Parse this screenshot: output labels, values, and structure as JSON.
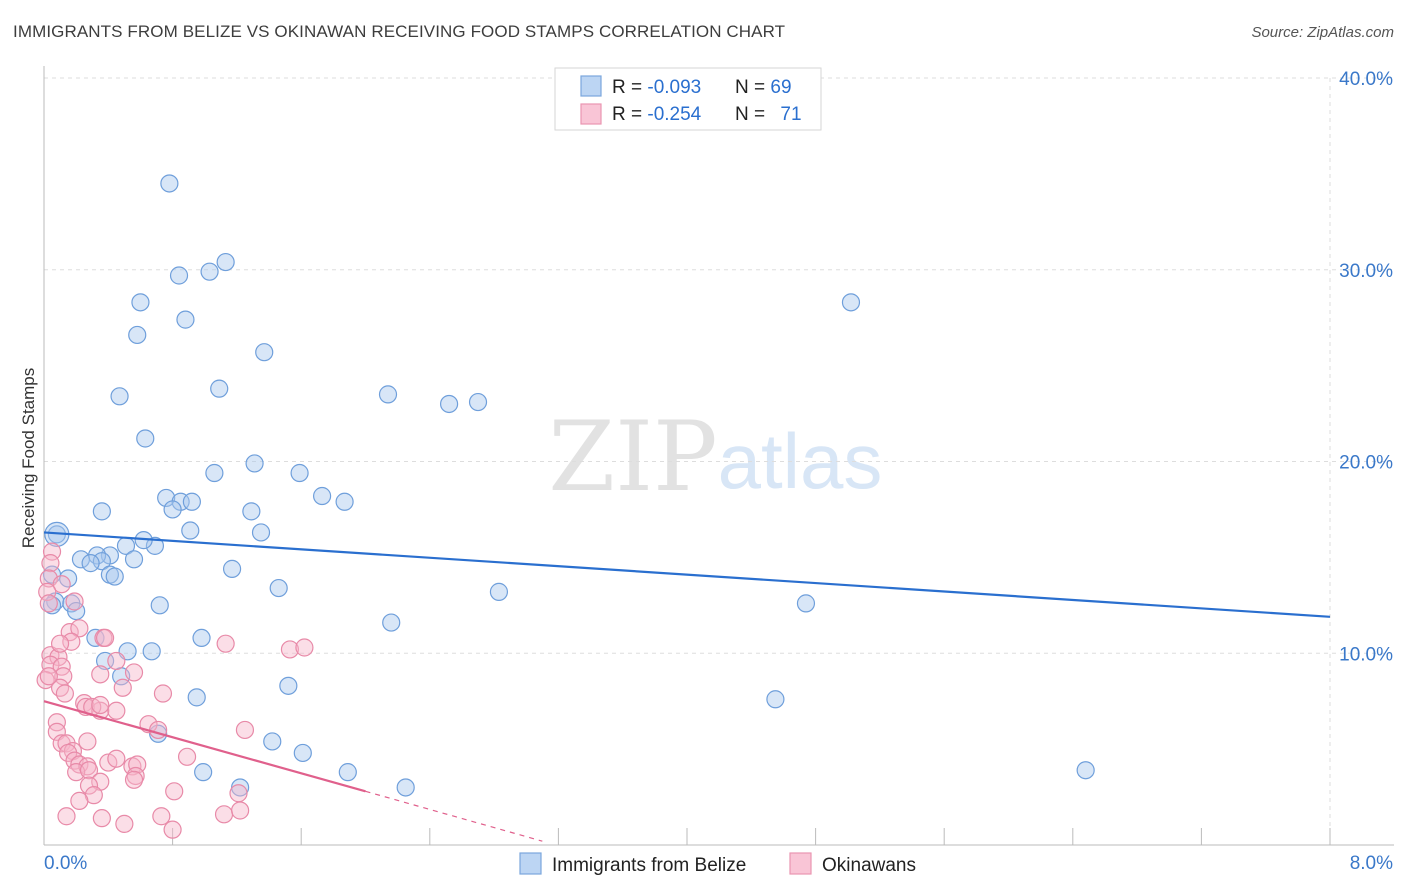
{
  "title": "IMMIGRANTS FROM BELIZE VS OKINAWAN RECEIVING FOOD STAMPS CORRELATION CHART",
  "source": "Source: ZipAtlas.com",
  "watermark": {
    "zip": "ZIP",
    "atlas": "atlas"
  },
  "legend": {
    "rows": [
      {
        "r_label": "R = ",
        "r_value": "-0.093",
        "n_label": "N = ",
        "n_value": "69"
      },
      {
        "r_label": "R = ",
        "r_value": "-0.254",
        "n_label": "N = ",
        "n_value": "71"
      }
    ]
  },
  "chart_data": {
    "type": "scatter",
    "title": "IMMIGRANTS FROM BELIZE VS OKINAWAN RECEIVING FOOD STAMPS CORRELATION CHART",
    "xlabel": "",
    "ylabel": "Receiving Food Stamps",
    "xlim": [
      0,
      8
    ],
    "ylim": [
      0,
      40
    ],
    "x_tick_labels": [
      "0.0%",
      "8.0%"
    ],
    "y_ticks": [
      10,
      20,
      30,
      40
    ],
    "y_tick_labels": [
      "10.0%",
      "20.0%",
      "30.0%",
      "40.0%"
    ],
    "grid": true,
    "legend_position": "top-center",
    "series": [
      {
        "name": "Immigrants from Belize",
        "color": "#a9c7ee",
        "edge": "#6f9fdb",
        "line_color": "#2a6fcf",
        "trend": {
          "x": [
            0,
            8
          ],
          "y": [
            16.3,
            11.9
          ]
        },
        "points": [
          [
            0.78,
            34.5
          ],
          [
            1.13,
            30.4
          ],
          [
            1.03,
            29.9
          ],
          [
            0.84,
            29.7
          ],
          [
            0.6,
            28.3
          ],
          [
            0.88,
            27.4
          ],
          [
            0.58,
            26.6
          ],
          [
            1.37,
            25.7
          ],
          [
            0.47,
            23.4
          ],
          [
            1.09,
            23.8
          ],
          [
            2.14,
            23.5
          ],
          [
            2.52,
            23.0
          ],
          [
            2.7,
            23.1
          ],
          [
            0.63,
            21.2
          ],
          [
            1.31,
            19.9
          ],
          [
            1.06,
            19.4
          ],
          [
            1.59,
            19.4
          ],
          [
            0.76,
            18.1
          ],
          [
            0.85,
            17.9
          ],
          [
            0.92,
            17.9
          ],
          [
            1.73,
            18.2
          ],
          [
            1.87,
            17.9
          ],
          [
            0.8,
            17.5
          ],
          [
            0.36,
            17.4
          ],
          [
            1.29,
            17.4
          ],
          [
            0.91,
            16.4
          ],
          [
            1.35,
            16.3
          ],
          [
            0.08,
            16.2
          ],
          [
            0.51,
            15.6
          ],
          [
            0.69,
            15.6
          ],
          [
            0.41,
            15.1
          ],
          [
            0.33,
            15.1
          ],
          [
            0.36,
            14.8
          ],
          [
            0.23,
            14.9
          ],
          [
            0.56,
            14.9
          ],
          [
            0.29,
            14.7
          ],
          [
            0.15,
            13.9
          ],
          [
            0.05,
            14.1
          ],
          [
            0.41,
            14.1
          ],
          [
            0.44,
            14.0
          ],
          [
            1.17,
            14.4
          ],
          [
            0.07,
            12.7
          ],
          [
            0.05,
            12.5
          ],
          [
            1.46,
            13.4
          ],
          [
            2.83,
            13.2
          ],
          [
            4.74,
            12.6
          ],
          [
            0.72,
            12.5
          ],
          [
            0.17,
            12.6
          ],
          [
            2.16,
            11.6
          ],
          [
            0.32,
            10.8
          ],
          [
            0.98,
            10.8
          ],
          [
            0.52,
            10.1
          ],
          [
            0.67,
            10.1
          ],
          [
            0.38,
            9.6
          ],
          [
            0.48,
            8.8
          ],
          [
            1.52,
            8.3
          ],
          [
            0.95,
            7.7
          ],
          [
            4.55,
            7.6
          ],
          [
            5.02,
            28.3
          ],
          [
            0.71,
            5.8
          ],
          [
            1.42,
            5.4
          ],
          [
            1.61,
            4.8
          ],
          [
            0.99,
            3.8
          ],
          [
            1.89,
            3.8
          ],
          [
            2.25,
            3.0
          ],
          [
            1.22,
            3.0
          ],
          [
            6.48,
            3.9
          ],
          [
            0.62,
            15.9
          ],
          [
            0.2,
            12.2
          ]
        ]
      },
      {
        "name": "Okinawans",
        "color": "#f6b5ca",
        "edge": "#e88aa8",
        "line_color": "#e0608c",
        "trend": {
          "x": [
            0,
            2.0
          ],
          "y": [
            7.5,
            2.8
          ]
        },
        "trend_dashed": {
          "x": [
            2.0,
            3.1
          ],
          "y": [
            2.8,
            0.2
          ]
        },
        "points": [
          [
            0.05,
            15.3
          ],
          [
            0.04,
            14.7
          ],
          [
            0.03,
            13.9
          ],
          [
            0.11,
            13.6
          ],
          [
            0.02,
            13.2
          ],
          [
            0.03,
            12.6
          ],
          [
            0.19,
            12.7
          ],
          [
            0.16,
            11.1
          ],
          [
            0.22,
            11.3
          ],
          [
            0.37,
            10.8
          ],
          [
            0.38,
            10.8
          ],
          [
            0.17,
            10.6
          ],
          [
            1.13,
            10.5
          ],
          [
            1.53,
            10.2
          ],
          [
            1.62,
            10.3
          ],
          [
            0.04,
            9.9
          ],
          [
            0.09,
            9.8
          ],
          [
            0.04,
            9.4
          ],
          [
            0.11,
            9.3
          ],
          [
            0.45,
            9.6
          ],
          [
            0.12,
            8.8
          ],
          [
            0.01,
            8.6
          ],
          [
            0.35,
            8.9
          ],
          [
            0.56,
            9.0
          ],
          [
            0.49,
            8.2
          ],
          [
            0.1,
            8.2
          ],
          [
            0.13,
            7.9
          ],
          [
            0.74,
            7.9
          ],
          [
            0.25,
            7.4
          ],
          [
            0.26,
            7.2
          ],
          [
            0.35,
            7.0
          ],
          [
            0.3,
            7.2
          ],
          [
            0.35,
            7.3
          ],
          [
            0.45,
            7.0
          ],
          [
            0.08,
            6.4
          ],
          [
            0.65,
            6.3
          ],
          [
            0.08,
            5.9
          ],
          [
            0.71,
            6.0
          ],
          [
            1.25,
            6.0
          ],
          [
            0.11,
            5.3
          ],
          [
            0.14,
            5.3
          ],
          [
            0.27,
            5.4
          ],
          [
            0.18,
            4.9
          ],
          [
            0.15,
            4.8
          ],
          [
            0.19,
            4.4
          ],
          [
            0.22,
            4.2
          ],
          [
            0.27,
            4.1
          ],
          [
            0.4,
            4.3
          ],
          [
            0.55,
            4.1
          ],
          [
            0.58,
            4.2
          ],
          [
            0.45,
            4.5
          ],
          [
            0.89,
            4.6
          ],
          [
            0.2,
            3.8
          ],
          [
            0.28,
            3.9
          ],
          [
            0.57,
            3.6
          ],
          [
            0.35,
            3.3
          ],
          [
            0.28,
            3.1
          ],
          [
            0.56,
            3.4
          ],
          [
            0.81,
            2.8
          ],
          [
            1.21,
            2.7
          ],
          [
            0.31,
            2.6
          ],
          [
            0.22,
            2.3
          ],
          [
            0.14,
            1.5
          ],
          [
            0.36,
            1.4
          ],
          [
            0.73,
            1.5
          ],
          [
            1.12,
            1.6
          ],
          [
            1.22,
            1.8
          ],
          [
            0.5,
            1.1
          ],
          [
            0.8,
            0.8
          ],
          [
            0.03,
            8.8
          ],
          [
            0.1,
            10.5
          ]
        ]
      }
    ]
  }
}
